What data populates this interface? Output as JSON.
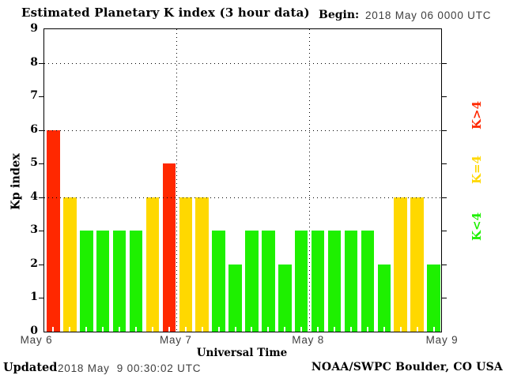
{
  "title": "Estimated Planetary K index (3 hour data)",
  "begin": {
    "label": "Begin:",
    "value": "2018 May 06 0000 UTC"
  },
  "footer": {
    "updated_label": "Updated",
    "updated_value": "2018 May  9 00:30:02 UTC",
    "credit": "NOAA/SWPC Boulder, CO USA"
  },
  "chart_data": {
    "type": "bar",
    "title": "Estimated Planetary K index (3 hour data)",
    "xlabel": "Universal Time",
    "ylabel": "Kp index",
    "ylim": [
      0,
      9
    ],
    "yticks": [
      0,
      1,
      2,
      3,
      4,
      5,
      6,
      7,
      8,
      9
    ],
    "gridlines_y": [
      4,
      6,
      8
    ],
    "grid": "dotted",
    "hours_per_bar": 3,
    "bars_per_day": 8,
    "day_labels": [
      "May 6",
      "May 7",
      "May 8",
      "May 9"
    ],
    "values": [
      6,
      4,
      3,
      3,
      3,
      3,
      4,
      5,
      4,
      4,
      3,
      2,
      3,
      3,
      2,
      3,
      3,
      3,
      3,
      3,
      2,
      4,
      4,
      2
    ],
    "colors": {
      "high": "#ff2800",
      "mid": "#ffd800",
      "low": "#1ef000"
    },
    "color_thresholds": {
      "high": "K>4",
      "mid": "K=4",
      "low": "K<4"
    },
    "legend_position": "right",
    "legend": [
      {
        "label": "K>4",
        "color": "#ff2800"
      },
      {
        "label": "K=4",
        "color": "#ffd800"
      },
      {
        "label": "K<4",
        "color": "#1ef000"
      }
    ]
  }
}
